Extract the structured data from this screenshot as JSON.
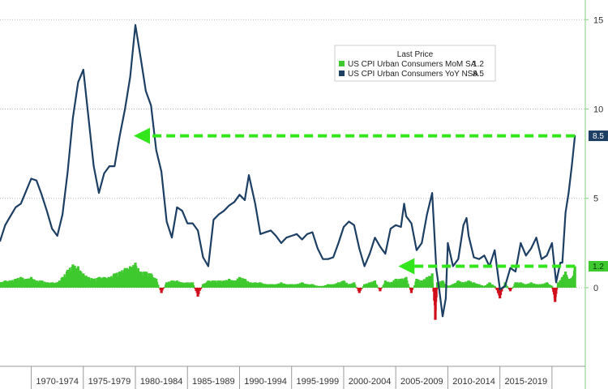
{
  "chart_data": {
    "type": "line",
    "title": "",
    "xlabel": "",
    "ylabel": "",
    "ylim": [
      -4.4,
      16.1
    ],
    "y_ticks": [
      0,
      5,
      10,
      15
    ],
    "grid": "horizontal-dotted",
    "categories": [
      "1970-1974",
      "1975-1979",
      "1980-1984",
      "1985-1989",
      "1990-1994",
      "1995-1999",
      "2000-2004",
      "2005-2009",
      "2010-2014",
      "2015-2019"
    ],
    "legend": {
      "placement": "top-center",
      "title": "Last Price",
      "entries": [
        {
          "label": "US CPI Urban Consumers MoM SA",
          "value": "1.2",
          "color": "#3ec92e"
        },
        {
          "label": "US CPI Urban Consumers YoY NSA",
          "value": "8.5",
          "color": "#1c3f63"
        }
      ]
    },
    "last_value_labels": [
      {
        "text": "8.5",
        "value": 8.5,
        "bg": "#1c3f63",
        "fg": "#ffffff"
      },
      {
        "text": "1.2",
        "value": 1.2,
        "bg": "#3ec92e",
        "fg": "#0a3a0a"
      }
    ],
    "annotations": [
      {
        "kind": "dashed-arrow",
        "color": "#33e61c",
        "value": 8.5,
        "from_year": 2022.2,
        "to_year": 1980.0
      },
      {
        "kind": "dashed-arrow",
        "color": "#33e61c",
        "value": 1.2,
        "from_year": 2022.2,
        "to_year": 2005.4
      }
    ],
    "series": [
      {
        "name": "US CPI Urban Consumers YoY NSA",
        "kind": "line",
        "color": "#1c3f63",
        "x": [
          1967.0,
          1967.5,
          1968.0,
          1968.5,
          1969.0,
          1969.5,
          1970.0,
          1970.5,
          1971.0,
          1971.5,
          1972.0,
          1972.5,
          1973.0,
          1973.5,
          1974.0,
          1974.5,
          1975.0,
          1975.5,
          1976.0,
          1976.5,
          1977.0,
          1977.5,
          1978.0,
          1978.5,
          1979.0,
          1979.5,
          1980.0,
          1980.5,
          1981.0,
          1981.5,
          1982.0,
          1982.5,
          1983.0,
          1983.5,
          1984.0,
          1984.5,
          1985.0,
          1985.5,
          1986.0,
          1986.5,
          1987.0,
          1987.5,
          1988.0,
          1988.5,
          1989.0,
          1989.5,
          1990.0,
          1990.5,
          1990.9,
          1991.5,
          1992.0,
          1992.5,
          1993.0,
          1993.5,
          1994.0,
          1994.5,
          1995.0,
          1995.5,
          1996.0,
          1996.5,
          1997.0,
          1997.5,
          1998.0,
          1998.5,
          1999.0,
          1999.5,
          2000.0,
          2000.5,
          2001.0,
          2001.5,
          2002.0,
          2002.5,
          2003.0,
          2003.5,
          2004.0,
          2004.5,
          2005.0,
          2005.5,
          2005.8,
          2006.0,
          2006.5,
          2007.0,
          2007.5,
          2008.0,
          2008.5,
          2008.9,
          2009.2,
          2009.5,
          2009.8,
          2010.0,
          2010.5,
          2011.0,
          2011.5,
          2011.8,
          2012.0,
          2012.5,
          2013.0,
          2013.5,
          2014.0,
          2014.5,
          2015.0,
          2015.5,
          2016.0,
          2016.5,
          2017.0,
          2017.5,
          2018.0,
          2018.5,
          2019.0,
          2019.5,
          2020.0,
          2020.4,
          2020.8,
          2021.0,
          2021.3,
          2021.6,
          2021.9,
          2022.2
        ],
        "values": [
          2.6,
          3.5,
          4.0,
          4.5,
          4.7,
          5.4,
          6.1,
          6.0,
          5.2,
          4.3,
          3.3,
          2.9,
          4.1,
          6.5,
          9.5,
          11.5,
          12.2,
          9.5,
          6.8,
          5.3,
          6.4,
          6.8,
          6.8,
          8.5,
          10.0,
          11.8,
          14.7,
          12.9,
          11.0,
          10.2,
          7.7,
          6.5,
          3.7,
          2.8,
          4.5,
          4.3,
          3.6,
          3.6,
          3.2,
          1.7,
          1.2,
          3.8,
          4.1,
          4.3,
          4.6,
          4.8,
          5.2,
          4.9,
          6.3,
          4.7,
          3.0,
          3.1,
          3.2,
          2.9,
          2.5,
          2.8,
          2.9,
          3.0,
          2.7,
          3.0,
          3.1,
          2.2,
          1.6,
          1.6,
          1.7,
          2.5,
          3.4,
          3.7,
          3.5,
          2.2,
          1.2,
          1.9,
          2.8,
          2.3,
          1.9,
          3.3,
          3.5,
          3.4,
          4.7,
          4.0,
          3.6,
          2.1,
          2.5,
          4.1,
          5.3,
          1.0,
          -0.2,
          -1.6,
          -0.6,
          2.5,
          1.2,
          1.6,
          3.5,
          3.9,
          2.9,
          1.7,
          1.6,
          1.8,
          1.2,
          2.1,
          -0.1,
          0.1,
          1.1,
          0.9,
          2.5,
          1.8,
          2.2,
          2.8,
          1.6,
          1.8,
          2.5,
          0.3,
          1.4,
          1.4,
          4.2,
          5.3,
          6.8,
          8.5
        ]
      },
      {
        "name": "US CPI Urban Consumers MoM SA",
        "kind": "bar",
        "color_pos": "#3ec92e",
        "color_neg": "#d10e1a",
        "x": [
          1967.0,
          1967.5,
          1968.0,
          1968.5,
          1969.0,
          1969.5,
          1970.0,
          1970.5,
          1971.0,
          1971.5,
          1972.0,
          1972.5,
          1973.0,
          1973.5,
          1974.0,
          1974.5,
          1975.0,
          1975.5,
          1976.0,
          1976.5,
          1977.0,
          1977.5,
          1978.0,
          1978.5,
          1979.0,
          1979.5,
          1980.0,
          1980.5,
          1981.0,
          1981.5,
          1982.0,
          1982.5,
          1983.0,
          1983.5,
          1984.0,
          1984.5,
          1985.0,
          1985.5,
          1986.0,
          1986.5,
          1987.0,
          1987.5,
          1988.0,
          1988.5,
          1989.0,
          1989.5,
          1990.0,
          1990.5,
          1991.0,
          1991.5,
          1992.0,
          1992.5,
          1993.0,
          1993.5,
          1994.0,
          1994.5,
          1995.0,
          1995.5,
          1996.0,
          1996.5,
          1997.0,
          1997.5,
          1998.0,
          1998.5,
          1999.0,
          1999.5,
          2000.0,
          2000.5,
          2001.0,
          2001.5,
          2002.0,
          2002.5,
          2003.0,
          2003.5,
          2004.0,
          2004.5,
          2005.0,
          2005.5,
          2006.0,
          2006.5,
          2007.0,
          2007.5,
          2008.0,
          2008.5,
          2008.8,
          2009.0,
          2009.5,
          2010.0,
          2010.5,
          2011.0,
          2011.5,
          2012.0,
          2012.5,
          2013.0,
          2013.5,
          2014.0,
          2014.5,
          2015.0,
          2015.5,
          2016.0,
          2016.5,
          2017.0,
          2017.5,
          2018.0,
          2018.5,
          2019.0,
          2019.5,
          2020.0,
          2020.3,
          2020.6,
          2021.0,
          2021.3,
          2021.6,
          2022.0,
          2022.2
        ],
        "values": [
          0.3,
          0.4,
          0.4,
          0.5,
          0.6,
          0.5,
          0.6,
          0.4,
          0.4,
          0.3,
          0.3,
          0.3,
          0.6,
          1.0,
          1.3,
          1.2,
          0.8,
          0.6,
          0.5,
          0.6,
          0.6,
          0.6,
          0.8,
          0.9,
          1.1,
          1.2,
          1.4,
          0.9,
          0.9,
          0.8,
          0.5,
          -0.3,
          0.3,
          0.4,
          0.4,
          0.3,
          0.3,
          0.3,
          -0.5,
          0.2,
          0.4,
          0.4,
          0.4,
          0.4,
          0.5,
          0.4,
          0.6,
          0.5,
          0.3,
          0.3,
          0.3,
          0.2,
          0.2,
          0.2,
          0.3,
          0.2,
          0.2,
          0.2,
          0.3,
          0.2,
          0.2,
          0.1,
          0.1,
          0.2,
          0.2,
          0.3,
          0.4,
          0.2,
          0.3,
          -0.3,
          0.2,
          0.3,
          0.4,
          -0.2,
          0.4,
          0.3,
          0.5,
          0.5,
          0.6,
          -0.3,
          0.5,
          0.4,
          0.6,
          0.8,
          -1.8,
          0.3,
          0.4,
          0.1,
          0.2,
          0.4,
          0.3,
          0.4,
          0.3,
          0.2,
          0.1,
          0.3,
          0.1,
          -0.6,
          0.3,
          -0.2,
          0.3,
          0.3,
          0.2,
          0.3,
          0.2,
          0.2,
          0.3,
          0.1,
          -0.8,
          0.3,
          0.6,
          0.9,
          0.5,
          0.6,
          1.2
        ]
      }
    ]
  }
}
